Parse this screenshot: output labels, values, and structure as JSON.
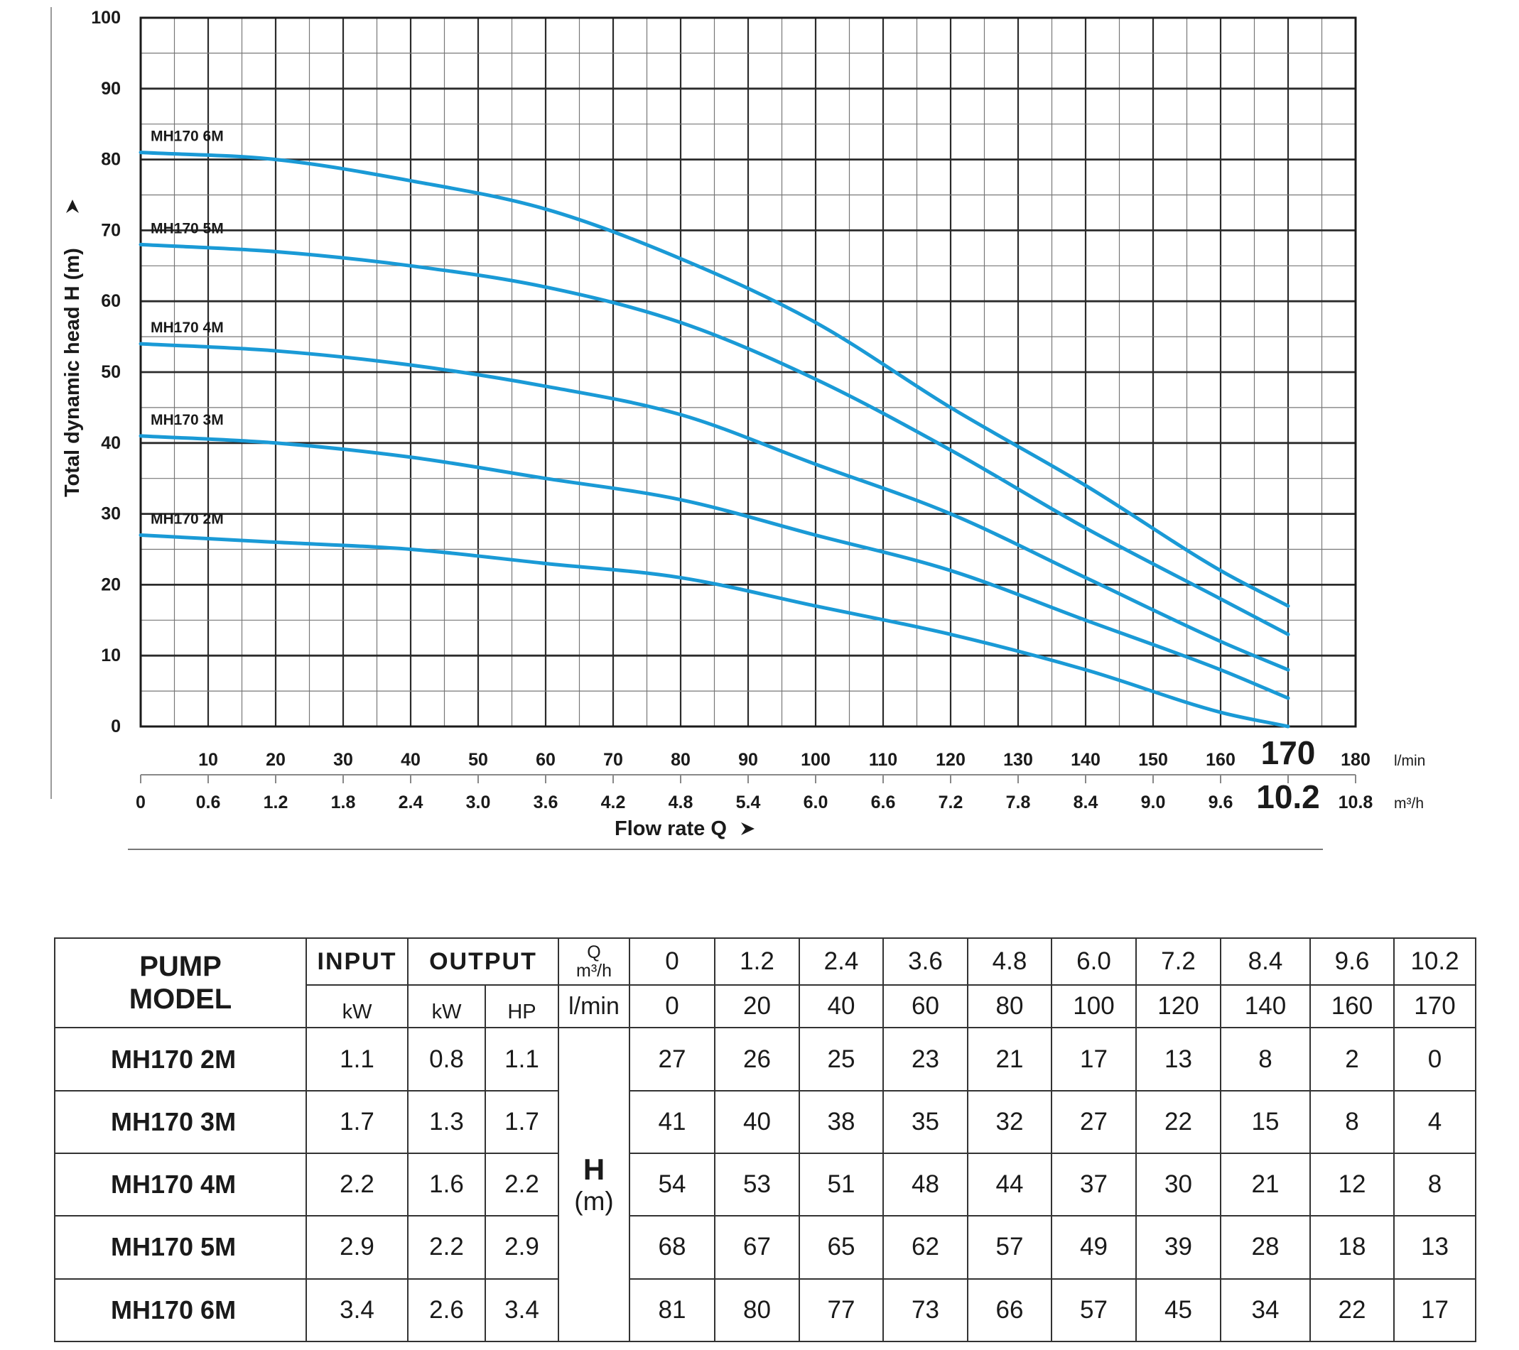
{
  "chart_data": {
    "type": "line",
    "xlabel": "Flow rate Q",
    "ylabel": "Total dynamic head H (m)",
    "x_unit": "l/min",
    "x2_unit": "m³/h",
    "xlim": [
      0,
      180
    ],
    "ylim": [
      0,
      100
    ],
    "grid": true,
    "y_ticks": [
      "0",
      "10",
      "20",
      "30",
      "40",
      "50",
      "60",
      "70",
      "80",
      "90",
      "100"
    ],
    "x_ticks_lmin": [
      "10",
      "20",
      "30",
      "40",
      "50",
      "60",
      "70",
      "80",
      "90",
      "100",
      "110",
      "120",
      "130",
      "140",
      "150",
      "160",
      "170",
      "180"
    ],
    "x_ticks_m3h": [
      "0",
      "0.6",
      "1.2",
      "1.8",
      "2.4",
      "3.0",
      "3.6",
      "4.2",
      "4.8",
      "5.4",
      "6.0",
      "6.6",
      "7.2",
      "7.8",
      "8.4",
      "9.0",
      "9.6",
      "10.2",
      "10.8"
    ],
    "highlight_tick_lmin": "170",
    "highlight_tick_m3h": "10.2",
    "x": [
      0,
      20,
      40,
      60,
      80,
      100,
      120,
      140,
      160,
      170
    ],
    "series": [
      {
        "name": "MH170 6M",
        "values": [
          81,
          80,
          77,
          73,
          66,
          57,
          45,
          34,
          22,
          17
        ]
      },
      {
        "name": "MH170 5M",
        "values": [
          68,
          67,
          65,
          62,
          57,
          49,
          39,
          28,
          18,
          13
        ]
      },
      {
        "name": "MH170 4M",
        "values": [
          54,
          53,
          51,
          48,
          44,
          37,
          30,
          21,
          12,
          8
        ]
      },
      {
        "name": "MH170 3M",
        "values": [
          41,
          40,
          38,
          35,
          32,
          27,
          22,
          15,
          8,
          4
        ]
      },
      {
        "name": "MH170 2M",
        "values": [
          27,
          26,
          25,
          23,
          21,
          17,
          13,
          8,
          2,
          0
        ]
      }
    ],
    "line_color": "#1a9ad6"
  },
  "table": {
    "model_header": [
      "PUMP",
      "MODEL"
    ],
    "input_header": "INPUT",
    "output_header": "OUTPUT",
    "q_header": "Q",
    "q_unit": "m³/h",
    "lmin_label": "l/min",
    "input_unit": "kW",
    "output_kw_unit": "kW",
    "output_hp_unit": "HP",
    "h_label": "H",
    "h_unit": "(m)",
    "q_m3h": [
      "0",
      "1.2",
      "2.4",
      "3.6",
      "4.8",
      "6.0",
      "7.2",
      "8.4",
      "9.6",
      "10.2"
    ],
    "q_lmin": [
      "0",
      "20",
      "40",
      "60",
      "80",
      "100",
      "120",
      "140",
      "160",
      "170"
    ],
    "rows": [
      {
        "model": "MH170 2M",
        "input_kw": "1.1",
        "output_kw": "0.8",
        "output_hp": "1.1",
        "h": [
          "27",
          "26",
          "25",
          "23",
          "21",
          "17",
          "13",
          "8",
          "2",
          "0"
        ]
      },
      {
        "model": "MH170 3M",
        "input_kw": "1.7",
        "output_kw": "1.3",
        "output_hp": "1.7",
        "h": [
          "41",
          "40",
          "38",
          "35",
          "32",
          "27",
          "22",
          "15",
          "8",
          "4"
        ]
      },
      {
        "model": "MH170 4M",
        "input_kw": "2.2",
        "output_kw": "1.6",
        "output_hp": "2.2",
        "h": [
          "54",
          "53",
          "51",
          "48",
          "44",
          "37",
          "30",
          "21",
          "12",
          "8"
        ]
      },
      {
        "model": "MH170 5M",
        "input_kw": "2.9",
        "output_kw": "2.2",
        "output_hp": "2.9",
        "h": [
          "68",
          "67",
          "65",
          "62",
          "57",
          "49",
          "39",
          "28",
          "18",
          "13"
        ]
      },
      {
        "model": "MH170 6M",
        "input_kw": "3.4",
        "output_kw": "2.6",
        "output_hp": "3.4",
        "h": [
          "81",
          "80",
          "77",
          "73",
          "66",
          "57",
          "45",
          "34",
          "22",
          "17"
        ]
      }
    ]
  }
}
